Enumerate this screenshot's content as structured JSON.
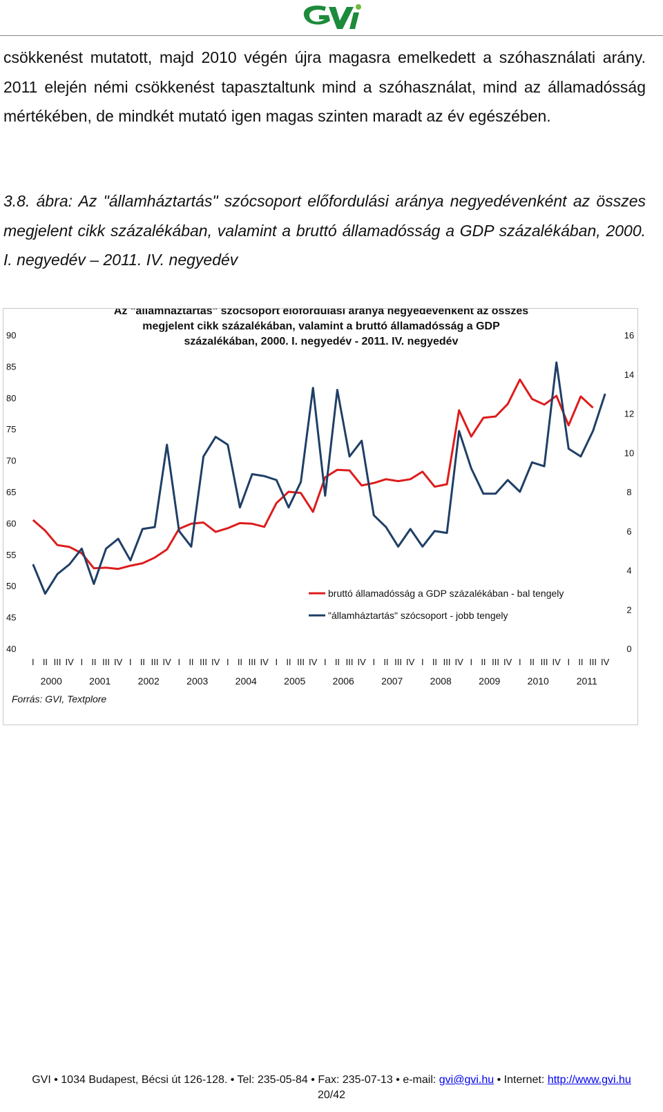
{
  "logo": {
    "text": "GVI",
    "color": "#1c8b3b",
    "dot_color": "#6fba3b"
  },
  "body_paragraph": "csökkenést mutatott, majd 2010 végén újra magasra emelkedett a szóhasználati arány. 2011 elején némi csökkenést tapasztaltunk mind a szóhasználat, mind az államadósság mértékében, de mindkét mutató igen magas szinten maradt az év egészében.",
  "figure_caption": "3.8. ábra: Az \"államháztartás\" szócsoport előfordulási aránya negyedévenként az összes megjelent cikk százalékában, valamint a bruttó államadósság a GDP százalékában, 2000. I. negyedév – 2011. IV. negyedév",
  "chart_data": {
    "type": "line",
    "title": "Az \"államháztartás\" szócsoport előfordulási aránya negyedévenként az összes megjelent cikk százalékában, valamint a bruttó államadósság a GDP százalékában, 2000. I. negyedév - 2011. IV. negyedév",
    "quarter_labels": [
      "I",
      "II",
      "III",
      "IV"
    ],
    "years": [
      "2000",
      "2001",
      "2002",
      "2003",
      "2004",
      "2005",
      "2006",
      "2007",
      "2008",
      "2009",
      "2010",
      "2011"
    ],
    "left_axis": {
      "min": 40,
      "max": 90,
      "ticks": [
        "40",
        "45",
        "50",
        "55",
        "60",
        "65",
        "70",
        "75",
        "80",
        "85",
        "90"
      ]
    },
    "right_axis": {
      "min": 0,
      "max": 16,
      "ticks": [
        "0",
        "2",
        "4",
        "6",
        "8",
        "10",
        "12",
        "14",
        "16"
      ]
    },
    "series": [
      {
        "name": "bruttó államadósság a GDP százalékában - bal tengely",
        "axis": "left",
        "color": "#dd1c1c",
        "values": [
          60.5,
          58.8,
          56.5,
          56.2,
          55.2,
          52.8,
          52.9,
          52.7,
          53.2,
          53.6,
          54.5,
          55.8,
          59.1,
          59.9,
          60.1,
          58.6,
          59.2,
          60.0,
          59.9,
          59.4,
          63.2,
          65.0,
          64.8,
          61.8,
          67.3,
          68.5,
          68.4,
          66.0,
          66.4,
          67.0,
          66.7,
          67.0,
          68.2,
          65.8,
          66.2,
          78.0,
          73.8,
          76.8,
          77.0,
          79.0,
          82.9,
          79.8,
          78.9,
          80.3,
          75.6,
          80.2,
          78.4,
          null
        ]
      },
      {
        "name": "\"államháztartás\" szócsoport - jobb tengely",
        "axis": "right",
        "color": "#1f3f66",
        "values": [
          4.3,
          2.8,
          3.8,
          4.3,
          5.1,
          3.3,
          5.1,
          5.6,
          4.5,
          6.1,
          6.2,
          10.4,
          6.0,
          5.2,
          9.8,
          10.8,
          10.4,
          7.2,
          8.9,
          8.8,
          8.6,
          7.2,
          8.5,
          13.3,
          7.8,
          13.2,
          9.8,
          10.6,
          6.8,
          6.2,
          5.2,
          6.1,
          5.2,
          6.0,
          5.9,
          11.1,
          9.2,
          7.9,
          7.9,
          8.6,
          8.0,
          9.5,
          9.3,
          14.6,
          10.2,
          9.8,
          11.1,
          13.0
        ]
      }
    ],
    "source": "Forrás: GVI, Textplore"
  },
  "footer": {
    "address": "GVI • 1034 Budapest, Bécsi út 126-128. • Tel: 235-05-84 • Fax: 235-07-13 • e-mail: ",
    "email": "gvi@gvi.hu",
    "internet_label": " • Internet: ",
    "url": "http://www.gvi.hu",
    "page": "20/42"
  }
}
